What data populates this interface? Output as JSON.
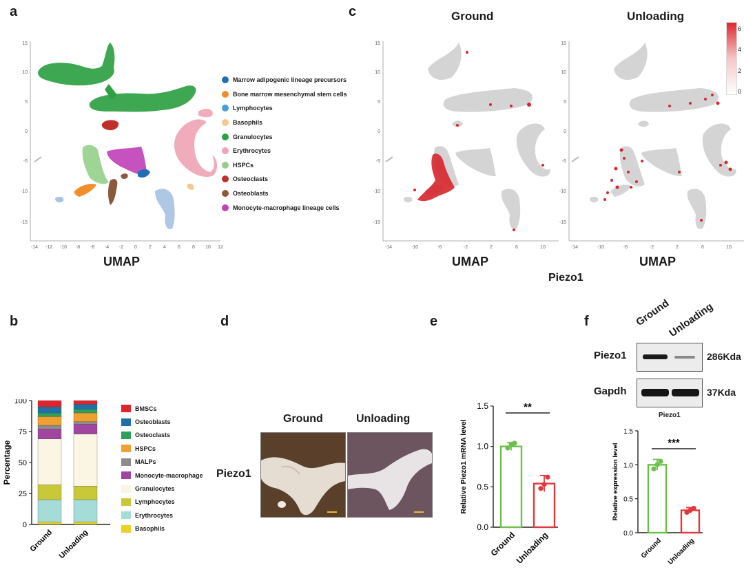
{
  "panel_labels": {
    "a": "a",
    "b": "b",
    "c": "c",
    "d": "d",
    "e": "e",
    "f": "f"
  },
  "panel_a": {
    "xlabel": "UMAP",
    "legend": [
      {
        "label": "Marrow adipogenic lineage precursors",
        "color": "#1f6fb2"
      },
      {
        "label": "Bone marrow mesenchymal stem cells",
        "color": "#f28e2b"
      },
      {
        "label": "Lymphocytes",
        "color": "#4a9fd8"
      },
      {
        "label": "Basophils",
        "color": "#f5c98a"
      },
      {
        "label": "Granulocytes",
        "color": "#2ea043"
      },
      {
        "label": "Erythrocytes",
        "color": "#f0a3b5"
      },
      {
        "label": "HSPCs",
        "color": "#94d08a"
      },
      {
        "label": "Osteoclasts",
        "color": "#c0302b"
      },
      {
        "label": "Osteoblasts",
        "color": "#8b5a3c"
      },
      {
        "label": "Monocyte-macrophage lineage cells",
        "color": "#c043b8"
      }
    ]
  },
  "panel_c": {
    "left_title": "Ground",
    "right_title": "Unloading",
    "xlabel_left": "UMAP",
    "xlabel_right": "UMAP",
    "gene": "Piezo1",
    "colorbar_ticks": [
      "6",
      "4",
      "2",
      "0"
    ]
  },
  "panel_d": {
    "left_title": "Ground",
    "right_title": "Unloading",
    "row_label": "Piezo1"
  },
  "panel_f": {
    "col_labels": [
      "Ground",
      "Unloading"
    ],
    "bands": [
      {
        "name": "Piezo1",
        "size": "286Kda"
      },
      {
        "name": "Gapdh",
        "size": "37Kda"
      }
    ],
    "subtitle": "Piezo1"
  },
  "chart_data": [
    {
      "type": "bar",
      "stacked": true,
      "categories": [
        "Ground",
        "Unloading"
      ],
      "ylabel": "Percentage",
      "ylim": [
        0,
        100
      ],
      "yticks": [
        "0",
        "25",
        "50",
        "75",
        "100"
      ],
      "series": [
        {
          "name": "Basophils",
          "color": "#e8d22a",
          "values": [
            2,
            2
          ]
        },
        {
          "name": "Erythrocytes",
          "color": "#a6dcd8",
          "values": [
            18,
            18
          ]
        },
        {
          "name": "Lymphocytes",
          "color": "#c8c838",
          "values": [
            12,
            11
          ]
        },
        {
          "name": "Granulocytes",
          "color": "#fbf5e4",
          "values": [
            37,
            42
          ]
        },
        {
          "name": "Monocyte-macrophage",
          "color": "#a045a0",
          "values": [
            8,
            8
          ]
        },
        {
          "name": "MALPs",
          "color": "#8c8c8c",
          "values": [
            3,
            2
          ]
        },
        {
          "name": "HSPCs",
          "color": "#f0a030",
          "values": [
            7,
            7
          ]
        },
        {
          "name": "Osteoclasts",
          "color": "#2ea05a",
          "values": [
            3,
            3
          ]
        },
        {
          "name": "Osteoblasts",
          "color": "#1f6fa8",
          "values": [
            5,
            4
          ]
        },
        {
          "name": "BMSCs",
          "color": "#e0242c",
          "values": [
            5,
            3
          ]
        }
      ]
    },
    {
      "type": "bar",
      "categories": [
        "Ground",
        "Unloading"
      ],
      "ylabel": "Relative Piezo1 mRNA level",
      "ylim": [
        0,
        1.5
      ],
      "yticks": [
        "0.0",
        "0.5",
        "1.0",
        "1.5"
      ],
      "values": [
        1.0,
        0.54
      ],
      "errors": [
        0.05,
        0.1
      ],
      "points": [
        [
          0.98,
          1.02,
          1.04
        ],
        [
          0.48,
          0.53,
          0.62
        ]
      ],
      "colors": [
        "#6cc04a",
        "#e0383c"
      ],
      "significance": "**"
    },
    {
      "type": "bar",
      "categories": [
        "Ground",
        "Unloading"
      ],
      "ylabel": "Relative expression level",
      "ylim": [
        0,
        1.5
      ],
      "yticks": [
        "0.0",
        "0.5",
        "1.0",
        "1.5"
      ],
      "values": [
        1.0,
        0.33
      ],
      "errors": [
        0.08,
        0.04
      ],
      "points": [
        [
          0.94,
          1.0,
          1.05
        ],
        [
          0.3,
          0.33,
          0.36
        ]
      ],
      "colors": [
        "#6cc04a",
        "#e0383c"
      ],
      "significance": "***"
    }
  ]
}
